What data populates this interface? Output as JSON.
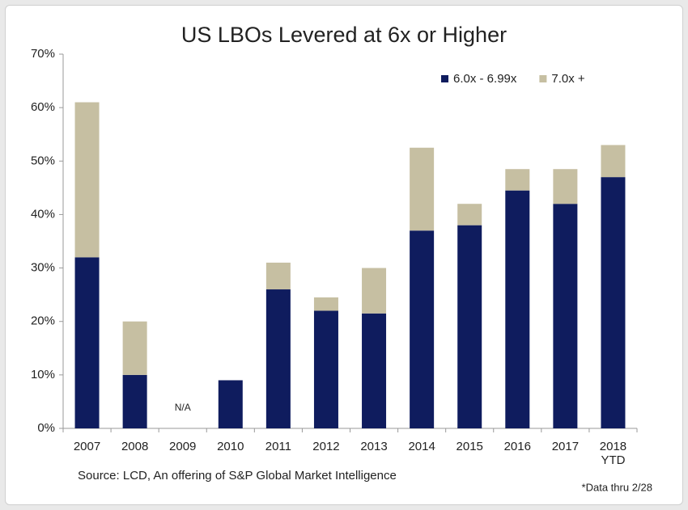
{
  "chart_data": {
    "type": "stacked_bar",
    "title": "US LBOs Levered at 6x or Higher",
    "categories": [
      "2007",
      "2008",
      "2009",
      "2010",
      "2011",
      "2012",
      "2013",
      "2014",
      "2015",
      "2016",
      "2017",
      "2018 YTD"
    ],
    "series": [
      {
        "name": "6.0x - 6.99x",
        "color": "#0f1c5e",
        "values": [
          32,
          10,
          null,
          9,
          26,
          22,
          21.5,
          37,
          38,
          44.5,
          42,
          47
        ]
      },
      {
        "name": "7.0x +",
        "color": "#c6bfa2",
        "values": [
          29,
          10,
          null,
          0,
          5,
          2.5,
          8.5,
          15.5,
          4,
          4,
          6.5,
          6
        ]
      }
    ],
    "annotation": "N/A",
    "ylim": [
      0,
      70
    ],
    "yticks": [
      {
        "value": 0,
        "label": "0%"
      },
      {
        "value": 10,
        "label": "10%"
      },
      {
        "value": 20,
        "label": "20%"
      },
      {
        "value": 30,
        "label": "30%"
      },
      {
        "value": 40,
        "label": "40%"
      },
      {
        "value": 50,
        "label": "50%"
      },
      {
        "value": 60,
        "label": "60%"
      },
      {
        "value": 70,
        "label": "70%"
      }
    ],
    "legend": "upper right",
    "source": "Source: LCD, An offering of S&P Global Market Intelligence",
    "footnote": "*Data thru 2/28"
  }
}
